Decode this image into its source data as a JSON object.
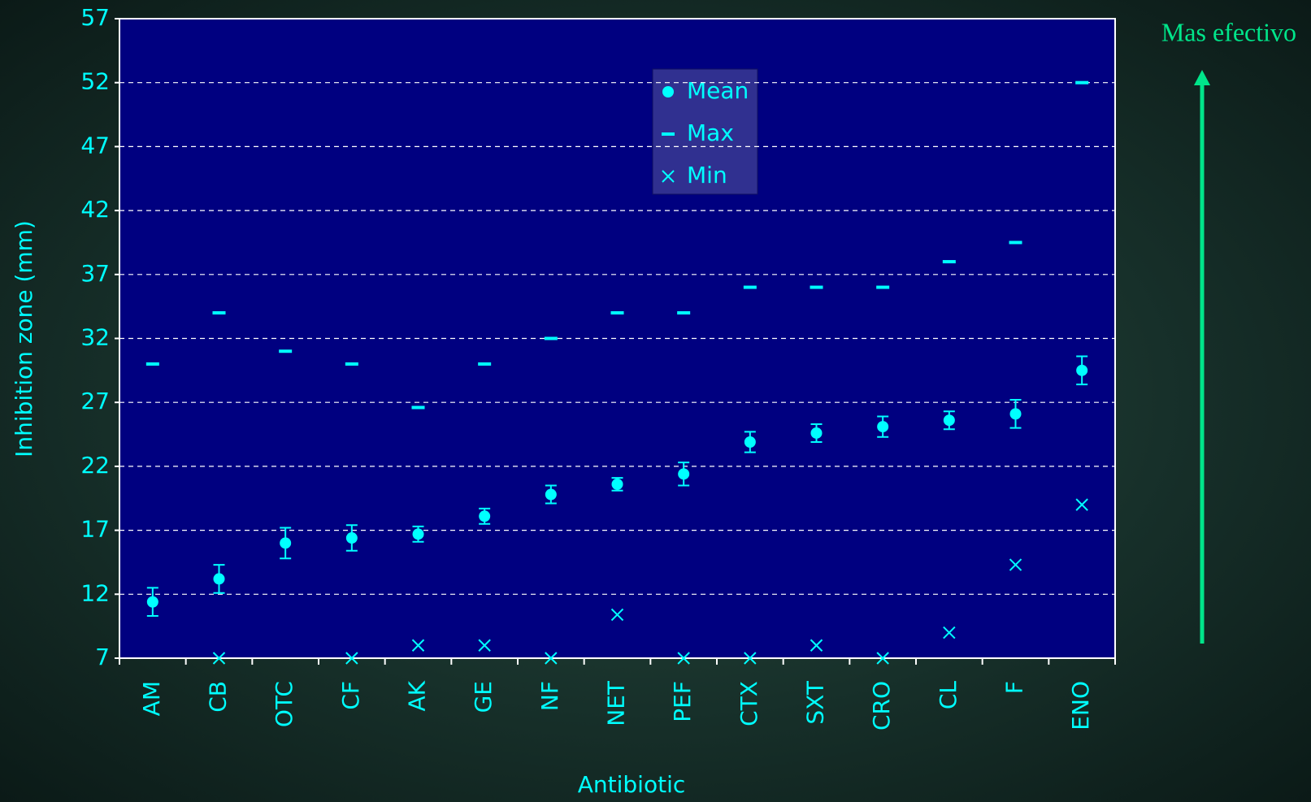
{
  "chart_data": {
    "type": "errorbar-scatter",
    "x_label": "Antibiotic",
    "y_label": "Inhibition zone (mm)",
    "annotation": "Mas efectivo",
    "categories": [
      "AM",
      "CB",
      "OTC",
      "CF",
      "AK",
      "GE",
      "NF",
      "NET",
      "PEF",
      "CTX",
      "SXT",
      "CRO",
      "CL",
      "F",
      "ENO"
    ],
    "series": [
      {
        "name": "Mean",
        "color": "#00ffff",
        "marker": "circle",
        "values": [
          11.4,
          13.2,
          16,
          16.4,
          16.7,
          18.1,
          19.8,
          20.6,
          21.4,
          23.9,
          24.6,
          25.1,
          25.6,
          26.1,
          29.5
        ],
        "errors": [
          1.1,
          1.1,
          1.2,
          1.0,
          0.6,
          0.6,
          0.7,
          0.5,
          0.9,
          0.8,
          0.7,
          0.8,
          0.7,
          1.1,
          1.1
        ]
      },
      {
        "name": "Max",
        "color": "#00ffff",
        "marker": "dash",
        "values": [
          30,
          34,
          31,
          30,
          26.6,
          30,
          32,
          34,
          34,
          36,
          36,
          36,
          38,
          39.5,
          52
        ]
      },
      {
        "name": "Min",
        "color": "#00ffff",
        "marker": "cross",
        "values": [
          null,
          7,
          null,
          7,
          8,
          8,
          7,
          10.4,
          7,
          7,
          8,
          7,
          9,
          14.3,
          19
        ]
      }
    ],
    "ylim": [
      7,
      57
    ],
    "yticks": [
      7,
      12,
      17,
      22,
      27,
      32,
      37,
      42,
      47,
      52,
      57
    ],
    "grid": true
  }
}
